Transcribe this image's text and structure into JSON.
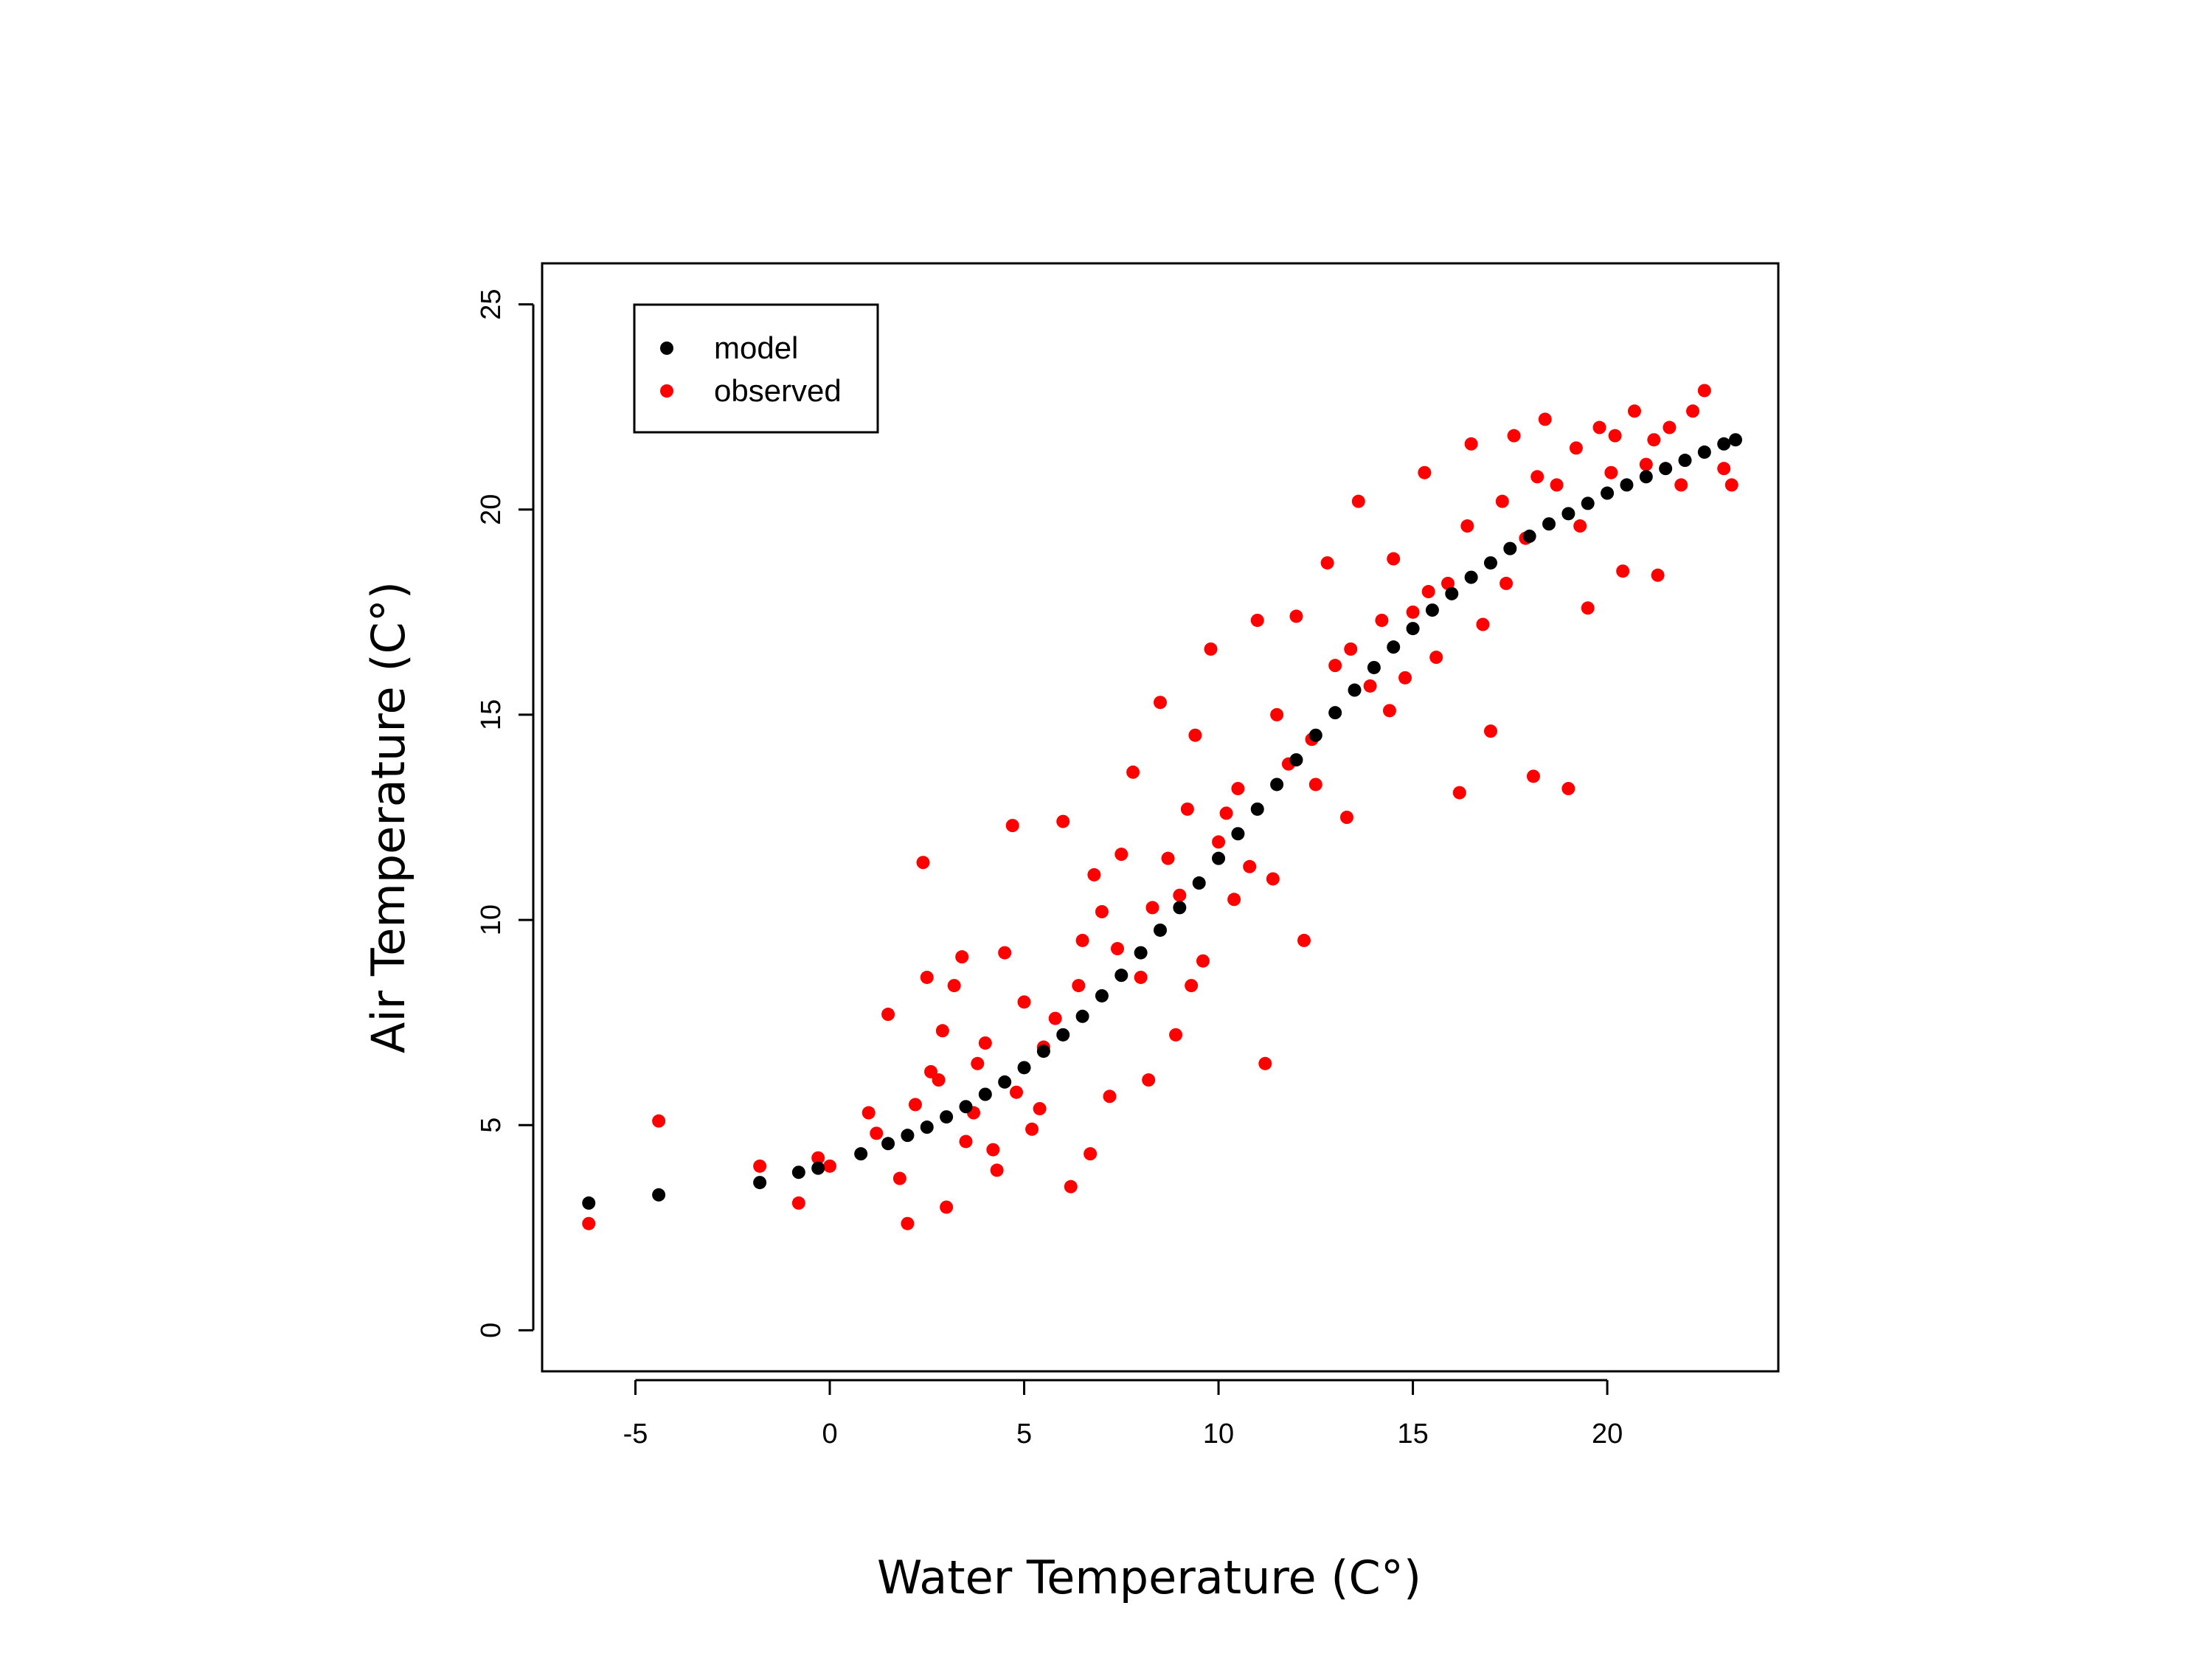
{
  "chart_data": {
    "type": "scatter",
    "title": "",
    "xlabel": "Water Temperature (C°)",
    "ylabel": "Air Temperature (C°)",
    "xlim": [
      -7.4,
      24.4
    ],
    "ylim": [
      -1.0,
      26.0
    ],
    "xticks": [
      -5,
      0,
      5,
      10,
      15,
      20
    ],
    "yticks": [
      0,
      5,
      10,
      15,
      20,
      25
    ],
    "grid": false,
    "legend_position": "top-left",
    "colors": {
      "model": "#000000",
      "observed": "#ff0000"
    },
    "series": [
      {
        "name": "model",
        "style": "points forming a smooth sigmoid curve",
        "points": [
          [
            -6.2,
            3.1
          ],
          [
            -4.4,
            3.3
          ],
          [
            -1.8,
            3.6
          ],
          [
            -0.8,
            3.85
          ],
          [
            -0.3,
            3.95
          ],
          [
            0.8,
            4.3
          ],
          [
            1.5,
            4.55
          ],
          [
            2.0,
            4.75
          ],
          [
            2.5,
            4.95
          ],
          [
            3.0,
            5.2
          ],
          [
            3.5,
            5.45
          ],
          [
            4.0,
            5.75
          ],
          [
            4.5,
            6.05
          ],
          [
            5.0,
            6.4
          ],
          [
            5.5,
            6.8
          ],
          [
            6.0,
            7.2
          ],
          [
            6.5,
            7.65
          ],
          [
            7.0,
            8.15
          ],
          [
            7.5,
            8.65
          ],
          [
            8.0,
            9.2
          ],
          [
            8.5,
            9.75
          ],
          [
            9.0,
            10.3
          ],
          [
            9.5,
            10.9
          ],
          [
            10.0,
            11.5
          ],
          [
            10.5,
            12.1
          ],
          [
            11.0,
            12.7
          ],
          [
            11.5,
            13.3
          ],
          [
            12.0,
            13.9
          ],
          [
            12.5,
            14.5
          ],
          [
            13.0,
            15.05
          ],
          [
            13.5,
            15.6
          ],
          [
            14.0,
            16.15
          ],
          [
            14.5,
            16.65
          ],
          [
            15.0,
            17.1
          ],
          [
            15.5,
            17.55
          ],
          [
            16.0,
            17.95
          ],
          [
            16.5,
            18.35
          ],
          [
            17.0,
            18.7
          ],
          [
            17.5,
            19.05
          ],
          [
            18.0,
            19.35
          ],
          [
            18.5,
            19.65
          ],
          [
            19.0,
            19.9
          ],
          [
            19.5,
            20.15
          ],
          [
            20.0,
            20.4
          ],
          [
            20.5,
            20.6
          ],
          [
            21.0,
            20.8
          ],
          [
            21.5,
            21.0
          ],
          [
            22.0,
            21.2
          ],
          [
            22.5,
            21.4
          ],
          [
            23.0,
            21.6
          ],
          [
            23.3,
            21.7
          ]
        ]
      },
      {
        "name": "observed",
        "points": [
          [
            -6.2,
            2.6
          ],
          [
            -4.4,
            5.1
          ],
          [
            -1.8,
            4.0
          ],
          [
            -0.8,
            3.1
          ],
          [
            -0.3,
            4.2
          ],
          [
            0.0,
            4.0
          ],
          [
            1.0,
            5.3
          ],
          [
            1.2,
            4.8
          ],
          [
            1.5,
            7.7
          ],
          [
            1.8,
            3.7
          ],
          [
            2.0,
            2.6
          ],
          [
            2.2,
            5.5
          ],
          [
            2.4,
            11.4
          ],
          [
            2.5,
            8.6
          ],
          [
            2.8,
            6.1
          ],
          [
            2.9,
            7.3
          ],
          [
            3.0,
            3.0
          ],
          [
            3.2,
            8.4
          ],
          [
            3.4,
            9.1
          ],
          [
            3.5,
            4.6
          ],
          [
            3.8,
            6.5
          ],
          [
            4.0,
            7.0
          ],
          [
            4.2,
            4.4
          ],
          [
            4.5,
            9.2
          ],
          [
            4.7,
            12.3
          ],
          [
            4.8,
            5.8
          ],
          [
            5.0,
            8.0
          ],
          [
            5.2,
            4.9
          ],
          [
            5.5,
            6.9
          ],
          [
            5.8,
            7.6
          ],
          [
            6.0,
            12.4
          ],
          [
            6.2,
            3.5
          ],
          [
            6.5,
            9.5
          ],
          [
            6.7,
            4.3
          ],
          [
            6.8,
            11.1
          ],
          [
            7.0,
            10.2
          ],
          [
            7.2,
            5.7
          ],
          [
            7.5,
            11.6
          ],
          [
            7.8,
            13.6
          ],
          [
            8.0,
            8.6
          ],
          [
            8.2,
            6.1
          ],
          [
            8.5,
            15.3
          ],
          [
            8.7,
            11.5
          ],
          [
            8.9,
            7.2
          ],
          [
            9.0,
            10.6
          ],
          [
            9.2,
            12.7
          ],
          [
            9.4,
            14.5
          ],
          [
            9.6,
            9.0
          ],
          [
            9.8,
            16.6
          ],
          [
            10.0,
            11.9
          ],
          [
            10.2,
            12.6
          ],
          [
            10.5,
            13.2
          ],
          [
            10.8,
            11.3
          ],
          [
            11.0,
            17.3
          ],
          [
            11.2,
            6.5
          ],
          [
            11.5,
            15.0
          ],
          [
            11.8,
            13.8
          ],
          [
            12.0,
            17.4
          ],
          [
            12.2,
            9.5
          ],
          [
            12.5,
            13.3
          ],
          [
            12.8,
            18.7
          ],
          [
            13.0,
            16.2
          ],
          [
            13.3,
            12.5
          ],
          [
            13.6,
            20.2
          ],
          [
            13.9,
            15.7
          ],
          [
            14.2,
            17.3
          ],
          [
            14.5,
            18.8
          ],
          [
            14.8,
            15.9
          ],
          [
            15.0,
            17.5
          ],
          [
            15.3,
            20.9
          ],
          [
            15.6,
            16.4
          ],
          [
            15.9,
            18.2
          ],
          [
            16.2,
            13.1
          ],
          [
            16.5,
            21.6
          ],
          [
            16.8,
            17.2
          ],
          [
            17.0,
            14.6
          ],
          [
            17.3,
            20.2
          ],
          [
            17.6,
            21.8
          ],
          [
            17.9,
            19.3
          ],
          [
            18.1,
            13.5
          ],
          [
            18.4,
            22.2
          ],
          [
            18.7,
            20.6
          ],
          [
            19.0,
            13.2
          ],
          [
            19.2,
            21.5
          ],
          [
            19.5,
            17.6
          ],
          [
            19.8,
            22.0
          ],
          [
            20.1,
            20.9
          ],
          [
            20.4,
            18.5
          ],
          [
            20.7,
            22.4
          ],
          [
            21.0,
            21.1
          ],
          [
            21.3,
            18.4
          ],
          [
            21.6,
            22.0
          ],
          [
            21.9,
            20.6
          ],
          [
            22.2,
            22.4
          ],
          [
            22.5,
            22.9
          ],
          [
            23.0,
            21.0
          ],
          [
            23.2,
            20.6
          ],
          [
            2.6,
            6.3
          ],
          [
            3.7,
            5.3
          ],
          [
            4.3,
            3.9
          ],
          [
            5.4,
            5.4
          ],
          [
            6.4,
            8.4
          ],
          [
            7.4,
            9.3
          ],
          [
            8.3,
            10.3
          ],
          [
            9.3,
            8.4
          ],
          [
            10.4,
            10.5
          ],
          [
            11.4,
            11.0
          ],
          [
            12.4,
            14.4
          ],
          [
            13.4,
            16.6
          ],
          [
            14.4,
            15.1
          ],
          [
            15.4,
            18.0
          ],
          [
            16.4,
            19.6
          ],
          [
            17.4,
            18.2
          ],
          [
            18.2,
            20.8
          ],
          [
            19.3,
            19.6
          ],
          [
            20.2,
            21.8
          ],
          [
            21.2,
            21.7
          ]
        ]
      }
    ]
  }
}
